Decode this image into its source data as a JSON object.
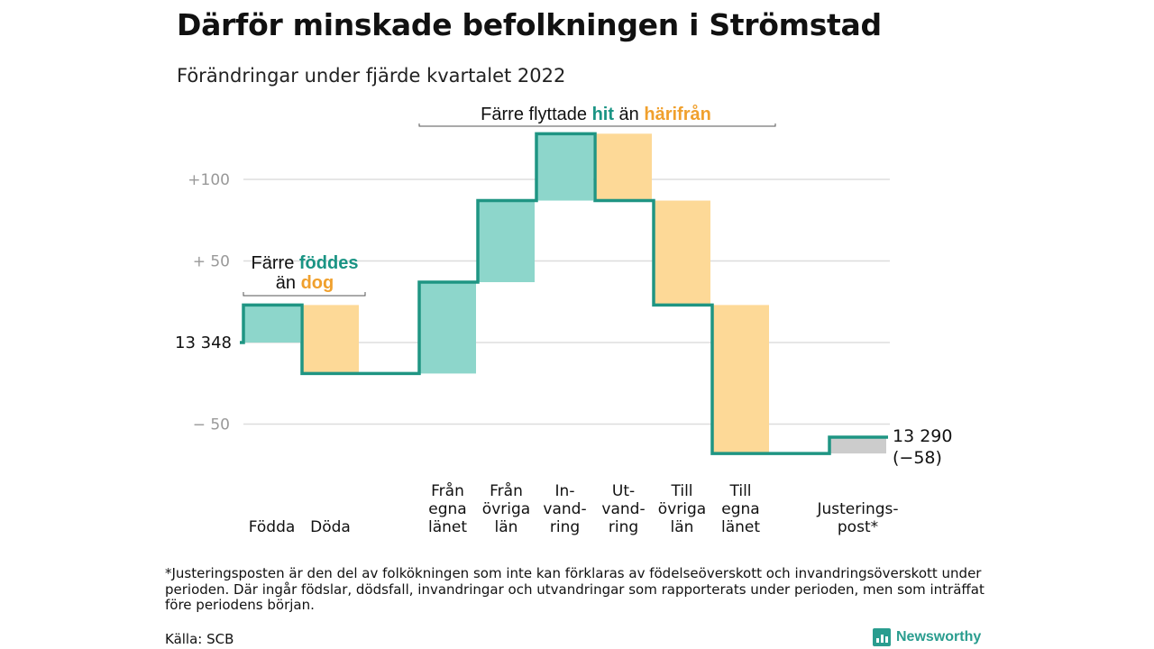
{
  "header": {
    "title": "Därför minskade befolkningen i Strömstad",
    "subtitle": "Förändringar under fjärde kvartalet 2022"
  },
  "colors": {
    "positive": "#8dd6cb",
    "negative": "#fdd997",
    "adjustment": "#cccccc",
    "line": "#1f9583",
    "hit": "#1a9484",
    "harifran": "#f0a02d"
  },
  "chart_data": {
    "type": "waterfall",
    "base_value": 13348,
    "base_label": "13 348",
    "end_label": "13 290",
    "end_change_label": "(−58)",
    "y_ticks": [
      {
        "value": 100,
        "label": "+100"
      },
      {
        "value": 50,
        "label": "+ 50"
      },
      {
        "value": 0,
        "label": ""
      },
      {
        "value": -50,
        "label": "− 50"
      }
    ],
    "ylim": [
      -70,
      130
    ],
    "steps": [
      {
        "label": [
          "Födda"
        ],
        "change": 23,
        "kind": "positive"
      },
      {
        "label": [
          "Döda"
        ],
        "change": -42,
        "kind": "negative"
      },
      {
        "label": [
          ""
        ],
        "change": 0,
        "kind": "gap"
      },
      {
        "label": [
          "Från",
          "egna",
          "länet"
        ],
        "change": 56,
        "kind": "positive"
      },
      {
        "label": [
          "Från",
          "övriga",
          "län"
        ],
        "change": 50,
        "kind": "positive"
      },
      {
        "label": [
          "In-",
          "vand-",
          "ring"
        ],
        "change": 41,
        "kind": "positive"
      },
      {
        "label": [
          "Ut-",
          "vand-",
          "ring"
        ],
        "change": -41,
        "kind": "negative"
      },
      {
        "label": [
          "Till",
          "övriga",
          "län"
        ],
        "change": -64,
        "kind": "negative"
      },
      {
        "label": [
          "Till",
          "egna",
          "länet"
        ],
        "change": -91,
        "kind": "negative"
      },
      {
        "label": [
          ""
        ],
        "change": 0,
        "kind": "gap"
      },
      {
        "label": [
          "Justerings-",
          "post*"
        ],
        "change": 10,
        "kind": "adjustment"
      }
    ],
    "annotations": {
      "births": {
        "line1_a": "Färre ",
        "line1_b": "föddes",
        "line2_a": "än ",
        "line2_b": "dog"
      },
      "migration": {
        "a": "Färre flyttade ",
        "b": "hit",
        "c": " än ",
        "d": "härifrån"
      }
    }
  },
  "footnote": "*Justeringsposten är den del av folkökningen som inte kan förklaras av födelseöverskott och invandringsöverskott under perioden. Där ingår födslar, dödsfall, invandringar och utvandringar som rapporterats under perioden, men som inträffat före periodens början.",
  "source": "Källa: SCB",
  "brand": {
    "name": "Newsworthy"
  }
}
